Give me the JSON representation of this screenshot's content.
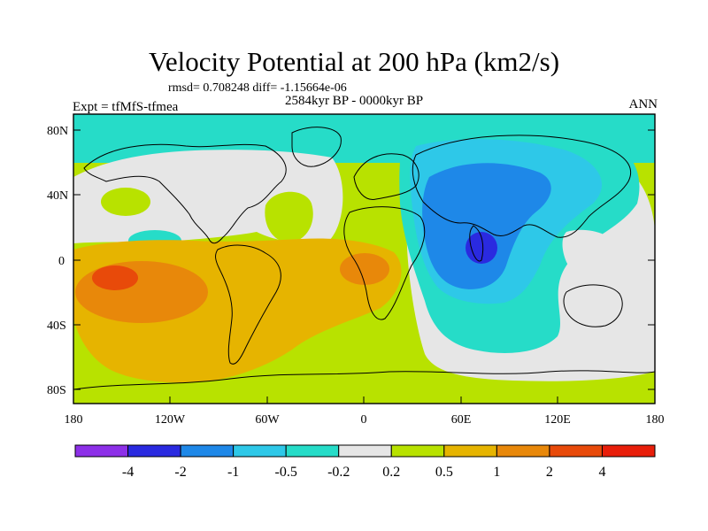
{
  "title": "Velocity Potential at 200 hPa (km2/s)",
  "stats_line": "rmsd= 0.708248 diff= -1.15664e-06",
  "period": "2584kyr BP - 0000kyr BP",
  "experiment": "Expt = tfMfS-tfmea",
  "season": "ANN",
  "chart_data": {
    "type": "heatmap",
    "projection": "cylindrical equidistant",
    "variable": "velocity potential difference at 200 hPa",
    "units": "km2/s",
    "lat_tick_labels": [
      "80N",
      "40N",
      "0",
      "40S",
      "80S"
    ],
    "lat_tick_values": [
      80,
      40,
      0,
      -40,
      -80
    ],
    "lon_tick_labels": [
      "180",
      "120W",
      "60W",
      "0",
      "60E",
      "120E",
      "180"
    ],
    "lon_tick_values": [
      -180,
      -120,
      -60,
      0,
      60,
      120,
      180
    ],
    "colorbar": {
      "boundaries": [
        -4,
        -2,
        -1,
        -0.5,
        -0.2,
        0.2,
        0.5,
        1,
        2,
        4
      ],
      "labels": [
        "-4",
        "-2",
        "-1",
        "-0.5",
        "-0.2",
        "0.2",
        "0.5",
        "1",
        "2",
        "4"
      ],
      "colors": [
        "#8d30e8",
        "#2a2ae0",
        "#1e88e8",
        "#2ec8e8",
        "#26dcc8",
        "#e6e6e6",
        "#b8e200",
        "#e6b400",
        "#e8880a",
        "#e84a0a",
        "#e81e0a"
      ]
    }
  }
}
